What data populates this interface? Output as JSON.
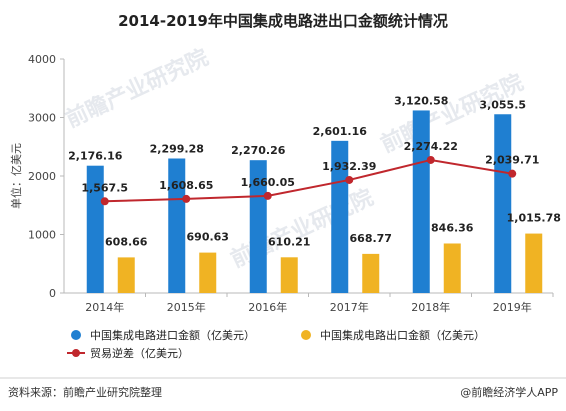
{
  "chart_data": {
    "type": "bar",
    "title": "2014-2019年中国集成电路进出口金额统计情况",
    "ylabel": "单位：亿美元",
    "xlabel": "",
    "ylim": [
      0,
      4000
    ],
    "yticks": [
      0,
      1000,
      2000,
      3000,
      4000
    ],
    "grid": false,
    "legend_position": "bottom",
    "categories": [
      "2014年",
      "2015年",
      "2016年",
      "2017年",
      "2018年",
      "2019年"
    ],
    "series": [
      {
        "name": "中国集成电路进口金额（亿美元）",
        "type": "bar",
        "color": "#1f7fd1",
        "values": [
          2176.16,
          2299.28,
          2270.26,
          2601.16,
          3120.58,
          3055.5
        ],
        "labels": [
          "2,176.16",
          "2,299.28",
          "2,270.26",
          "2,601.16",
          "3,120.58",
          "3,055.5"
        ]
      },
      {
        "name": "中国集成电路出口金额（亿美元）",
        "type": "bar",
        "color": "#f0b323",
        "values": [
          608.66,
          690.63,
          610.21,
          668.77,
          846.36,
          1015.78
        ],
        "labels": [
          "608.66",
          "690.63",
          "610.21",
          "668.77",
          "846.36",
          "1,015.78"
        ]
      },
      {
        "name": "贸易逆差（亿美元）",
        "type": "line",
        "color": "#c0272d",
        "values": [
          1567.5,
          1608.65,
          1660.05,
          1932.39,
          2274.22,
          2039.71
        ],
        "labels": [
          "1,567.5",
          "1,608.65",
          "1,660.05",
          "1,932.39",
          "2,274.22",
          "2,039.71"
        ]
      }
    ]
  },
  "footer": {
    "source": "资料来源：前瞻产业研究院整理",
    "brand": "@前瞻经济学人APP"
  },
  "watermark": {
    "text": "前瞻产业研究院"
  }
}
